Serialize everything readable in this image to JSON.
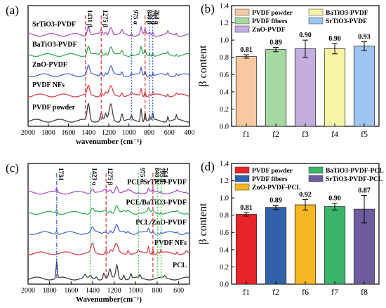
{
  "chart_data": [
    {
      "panel": "(a)",
      "type": "line",
      "xlabel": "wavenumber (cm⁻¹)",
      "ylabel": "",
      "xlim": [
        2000,
        400
      ],
      "xticks": [
        2000,
        1800,
        1600,
        1400,
        1200,
        1000,
        800,
        600,
        400
      ],
      "reversed_x": true,
      "grid": false,
      "series": [
        {
          "name": "PVDF powder",
          "color": "#333333"
        },
        {
          "name": "PVDF NFs",
          "color": "#d9343b"
        },
        {
          "name": "ZnO-PVDF",
          "color": "#3b5fd9"
        },
        {
          "name": "BaTiO3-PVDF",
          "color": "#2ba84a"
        },
        {
          "name": "SrTiO3-PVDF",
          "color": "#a347c2"
        }
      ],
      "markers": [
        {
          "label": "1431 β",
          "x": 1431,
          "color": "#d9343b",
          "style": "dash"
        },
        {
          "label": "1275 β",
          "x": 1275,
          "color": "#d9343b",
          "style": "dash"
        },
        {
          "label": "975 α",
          "x": 975,
          "color": "#3b5fd9",
          "style": "dot"
        },
        {
          "label": "840 β",
          "x": 840,
          "color": "#d9343b",
          "style": "dash"
        },
        {
          "label": "795 α",
          "x": 795,
          "color": "#3b5fd9",
          "style": "dot"
        },
        {
          "label": "764 α",
          "x": 764,
          "color": "#3b5fd9",
          "style": "dot"
        }
      ]
    },
    {
      "panel": "(b)",
      "type": "bar",
      "ylabel": "β content",
      "ylim": [
        0,
        1.4
      ],
      "yticks": [
        "0.0",
        "0.2",
        "0.4",
        "0.6",
        "0.8",
        "1.0",
        "1.2",
        "1.4"
      ],
      "categories": [
        "f1",
        "f2",
        "f3",
        "f4",
        "f5"
      ],
      "values": [
        0.81,
        0.89,
        0.9,
        0.9,
        0.93
      ],
      "value_labels": [
        "0.81",
        "0.89",
        "0.90",
        "0.90",
        "0.93"
      ],
      "errors": [
        0.02,
        0.025,
        0.1,
        0.06,
        0.05
      ],
      "colors": [
        "#f8c9a0",
        "#a6d9a2",
        "#c4aee0",
        "#f8f4a6",
        "#9ec4f2"
      ],
      "legend": [
        "PVDF powder",
        "BaTiO3-PVDF",
        "PVDF fibers",
        "SrTiO3-PVDF",
        "ZnO-PVDF"
      ],
      "legend_colors": [
        "#f8c9a0",
        "#f8f4a6",
        "#a6d9a2",
        "#9ec4f2",
        "#c4aee0"
      ],
      "legend_placement": "top"
    },
    {
      "panel": "(c)",
      "type": "line",
      "xlabel": "Wavenumber(cm⁻¹)",
      "ylabel": "",
      "xlim": [
        2000,
        500
      ],
      "xticks": [
        2000,
        1800,
        1600,
        1400,
        1200,
        1000,
        800,
        600
      ],
      "reversed_x": true,
      "grid": false,
      "series": [
        {
          "name": "PCL",
          "color": "#333333"
        },
        {
          "name": "PVDF NFs",
          "color": "#d9343b"
        },
        {
          "name": "PCL/ZnO-PVDF",
          "color": "#3b5fd9"
        },
        {
          "name": "PCL/BaTiO3-PVDF",
          "color": "#2ba84a"
        },
        {
          "name": "PCL/SrTiO3-PVDF",
          "color": "#a347c2"
        }
      ],
      "markers": [
        {
          "label": "1734",
          "x": 1734,
          "color": "#3b5fd9",
          "style": "dashdot"
        },
        {
          "label": "1423 α",
          "x": 1423,
          "color": "#2ccf3c",
          "style": "dot"
        },
        {
          "label": "1275 β",
          "x": 1275,
          "color": "#d9343b",
          "style": "dash"
        },
        {
          "label": "975 α",
          "x": 975,
          "color": "#2ccf3c",
          "style": "dot"
        },
        {
          "label": "840 β",
          "x": 840,
          "color": "#d9343b",
          "style": "dash"
        },
        {
          "label": "795 α",
          "x": 795,
          "color": "#2ccf3c",
          "style": "dot"
        },
        {
          "label": "764 α",
          "x": 764,
          "color": "#2ccf3c",
          "style": "dot"
        }
      ]
    },
    {
      "panel": "(d)",
      "type": "bar",
      "ylabel": "β content",
      "ylim": [
        0,
        1.4
      ],
      "yticks": [
        "0.0",
        "0.2",
        "0.4",
        "0.6",
        "0.8",
        "1.0",
        "1.2",
        "1.4"
      ],
      "categories": [
        "f1",
        "f2",
        "f6",
        "f7",
        "f8"
      ],
      "values": [
        0.81,
        0.89,
        0.92,
        0.9,
        0.87
      ],
      "value_labels": [
        "0.81",
        "0.89",
        "0.92",
        "0.90",
        "0.87"
      ],
      "errors": [
        0.02,
        0.025,
        0.06,
        0.04,
        0.16
      ],
      "colors": [
        "#e8242a",
        "#2f62a8",
        "#f5b820",
        "#3bb56a",
        "#6e5c9e"
      ],
      "legend": [
        "PVDF powder",
        "BaTiO3-PVDF-PCL",
        "PVDF fibers",
        "SrTiO3-PVDF-PCL",
        "ZnO-PVDF-PCL"
      ],
      "legend_colors": [
        "#e8242a",
        "#3bb56a",
        "#2f62a8",
        "#6e5c9e",
        "#f5b820"
      ],
      "legend_placement": "top"
    }
  ]
}
